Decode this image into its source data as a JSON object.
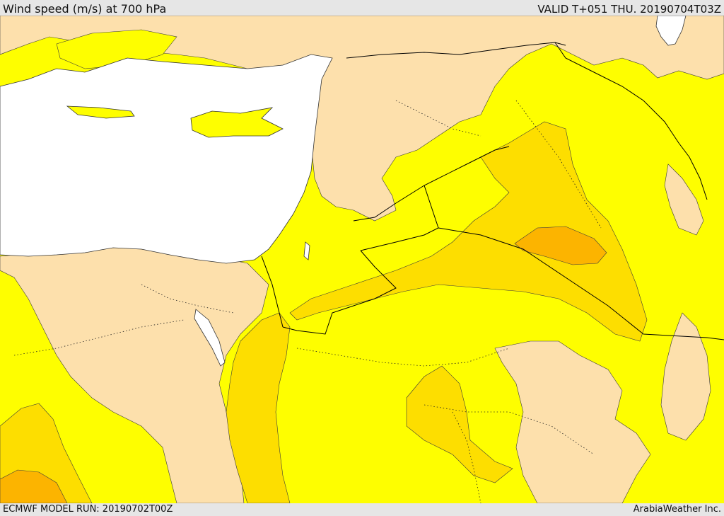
{
  "header": {
    "title": "Wind speed (m/s) at 700 hPa",
    "valid": "VALID T+051 THU. 20190704T03Z"
  },
  "footer": {
    "model_run": "ECMWF MODEL RUN: 20190702T00Z",
    "brand": "ArabiaWeather Inc."
  },
  "colors": {
    "sea": "#ffffff",
    "band_low": "#fde0ac",
    "band_mid": "#fefe00",
    "band_high": "#fdde00",
    "band_peak": "#fcb400",
    "border_line": "#000000",
    "contour_line": "#3b3b3b"
  },
  "map": {
    "fields": [
      "band_low",
      "band_mid",
      "band_high",
      "band_peak"
    ]
  }
}
